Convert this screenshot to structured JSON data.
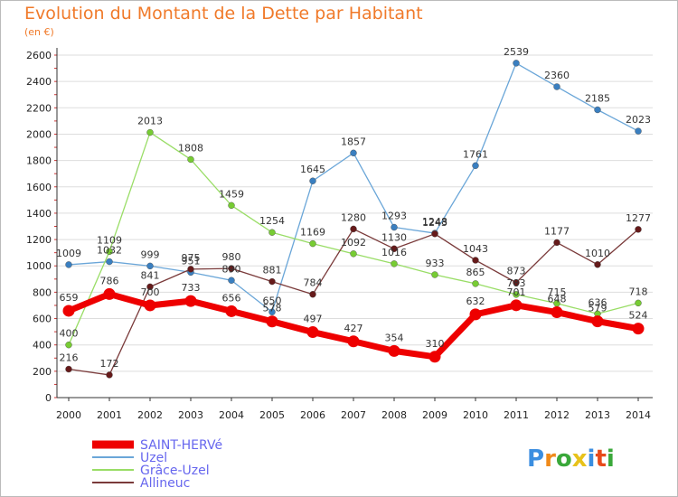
{
  "title": "Evolution du Montant de la Dette par Habitant",
  "unit": "(en €)",
  "colors": {
    "axis": "#333333",
    "grid": "#dddddd",
    "minor_tick": "#cc3333",
    "legend_text": "#6666ee",
    "title": "#f07a2a"
  },
  "logo": {
    "text": "Proxiti",
    "letter_colors": [
      "#3b8ee0",
      "#f08a1a",
      "#3aa83a",
      "#e8c21a",
      "#3b8ee0",
      "#e84a1a",
      "#3aa83a"
    ]
  },
  "chart_data": {
    "type": "line",
    "title": "Evolution du Montant de la Dette par Habitant",
    "ylabel": "(en €)",
    "xlabel": "",
    "categories": [
      "2000",
      "2001",
      "2002",
      "2003",
      "2004",
      "2005",
      "2006",
      "2007",
      "2008",
      "2009",
      "2010",
      "2011",
      "2012",
      "2013",
      "2014"
    ],
    "ylim": [
      0,
      2600
    ],
    "yticks": [
      0,
      200,
      400,
      600,
      800,
      1000,
      1200,
      1400,
      1600,
      1800,
      2000,
      2200,
      2400,
      2600
    ],
    "grid": "horizontal",
    "legend_position": "bottom-left",
    "series": [
      {
        "name": "SAINT-HERVé",
        "color": "#ee0000",
        "dot": "#ee0000",
        "width": 7,
        "r": 6.5,
        "values": [
          659,
          786,
          700,
          733,
          656,
          578,
          497,
          427,
          354,
          310,
          632,
          701,
          648,
          579,
          524
        ]
      },
      {
        "name": "Uzel",
        "color": "#6aa6d8",
        "dot": "#3a7fc0",
        "width": 1.3,
        "r": 3.5,
        "values": [
          1009,
          1032,
          999,
          951,
          890,
          650,
          1645,
          1857,
          1293,
          1248,
          1761,
          2539,
          2360,
          2185,
          2023
        ]
      },
      {
        "name": "Grâce-Uzel",
        "color": "#99dd66",
        "dot": "#77cc33",
        "width": 1.3,
        "r": 3.5,
        "values": [
          400,
          1109,
          2013,
          1808,
          1459,
          1254,
          1169,
          1092,
          1016,
          933,
          865,
          783,
          715,
          636,
          718
        ]
      },
      {
        "name": "Allineuc",
        "color": "#7a3a3a",
        "dot": "#661a1a",
        "width": 1.3,
        "r": 3.5,
        "values": [
          216,
          172,
          841,
          975,
          980,
          881,
          784,
          1280,
          1130,
          1243,
          1043,
          873,
          1177,
          1010,
          1277
        ]
      }
    ]
  }
}
